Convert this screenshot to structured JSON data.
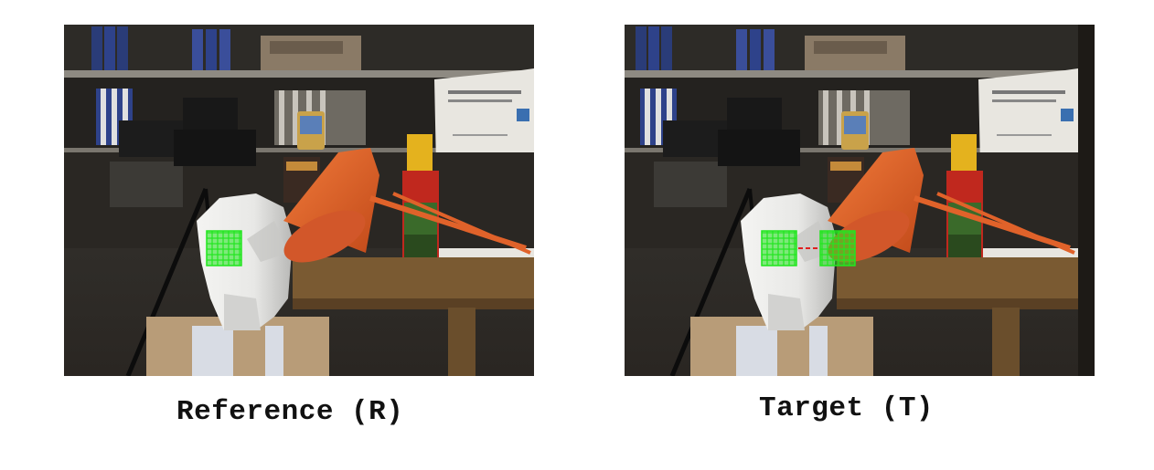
{
  "captions": {
    "reference": "Reference (R)",
    "target": "Target (T)"
  },
  "colors": {
    "window_grid": "#22e61f",
    "disparity_line": "#e02020",
    "lamp": "#e0622a",
    "background": "#ffffff"
  },
  "icons": {
    "scene": "tsukuba-stereo-photo",
    "matching_window": "pixel-grid-window"
  }
}
